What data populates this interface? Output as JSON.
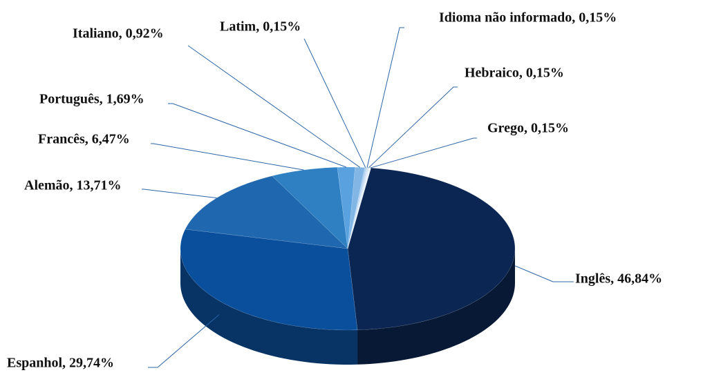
{
  "chart_data": {
    "type": "pie3d",
    "values": [
      46.84,
      29.74,
      13.71,
      6.47,
      1.69,
      0.92,
      0.15,
      0.15,
      0.15,
      0.15
    ],
    "value_labels": [
      "Inglês, 46,84%",
      "Espanhol, 29,74%",
      "Alemão, 13,71%",
      "Francês, 6,47%",
      "Português, 1,69%",
      "Italiano, 0,92%",
      "Latim, 0,15%",
      "Idioma não informado, 0,15%",
      "Hebraico, 0,15%",
      "Grego, 0,15%"
    ],
    "colors": [
      "#0b2652",
      "#0a4f9c",
      "#1f67ae",
      "#2f80c2",
      "#5aa2df",
      "#82b6e5",
      "#a9cdef",
      "#c6ddf4",
      "#dce9f7",
      "#eef5fb"
    ]
  }
}
